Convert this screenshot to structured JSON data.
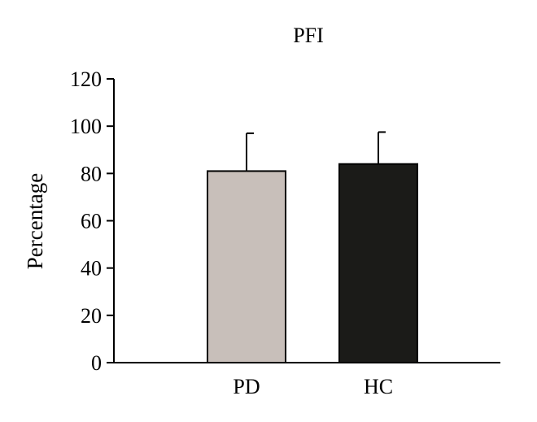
{
  "chart_data": {
    "type": "bar",
    "title": "PFI",
    "xlabel": "",
    "ylabel": "Percentage",
    "ylim": [
      0,
      120
    ],
    "yticks": [
      0,
      20,
      40,
      60,
      80,
      100,
      120
    ],
    "categories": [
      "PD",
      "HC"
    ],
    "values": [
      81,
      84
    ],
    "error_upper": [
      16,
      13.5
    ],
    "colors": [
      "#c8bfba",
      "#1b1b18"
    ],
    "grid": false
  }
}
